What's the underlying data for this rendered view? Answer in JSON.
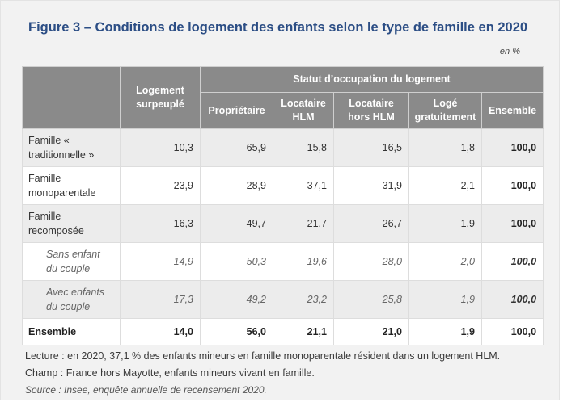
{
  "title": "Figure 3 – Conditions de logement des enfants selon le type de famille en 2020",
  "unit": "en %",
  "header": {
    "overcrowded": "Logement surpeuplé",
    "group": "Statut d’occupation du logement",
    "cols": [
      "Propriétaire",
      "Locataire HLM",
      "Locataire hors HLM",
      "Logé gratuitement",
      "Ensemble"
    ]
  },
  "rows": [
    {
      "label": "Famille « traditionnelle »",
      "values": [
        "10,3",
        "65,9",
        "15,8",
        "16,5",
        "1,8",
        "100,0"
      ]
    },
    {
      "label": "Famille monoparentale",
      "values": [
        "23,9",
        "28,9",
        "37,1",
        "31,9",
        "2,1",
        "100,0"
      ]
    },
    {
      "label": "Famille recomposée",
      "values": [
        "16,3",
        "49,7",
        "21,7",
        "26,7",
        "1,9",
        "100,0"
      ]
    },
    {
      "label": "Sans enfant du couple",
      "values": [
        "14,9",
        "50,3",
        "19,6",
        "28,0",
        "2,0",
        "100,0"
      ]
    },
    {
      "label": "Avec enfants du couple",
      "values": [
        "17,3",
        "49,2",
        "23,2",
        "25,8",
        "1,9",
        "100,0"
      ]
    },
    {
      "label": "Ensemble",
      "values": [
        "14,0",
        "56,0",
        "21,1",
        "21,0",
        "1,9",
        "100,0"
      ]
    }
  ],
  "notes": {
    "lecture": "Lecture : en 2020, 37,1 % des enfants mineurs en famille monoparentale résident dans un logement HLM.",
    "champ": "Champ : France hors Mayotte, enfants mineurs vivant en famille.",
    "source": "Source : Insee, enquête annuelle de recensement 2020."
  },
  "colors": {
    "title": "#2c4e85",
    "header_bg": "#8a8a8a",
    "band": "#ececec"
  }
}
